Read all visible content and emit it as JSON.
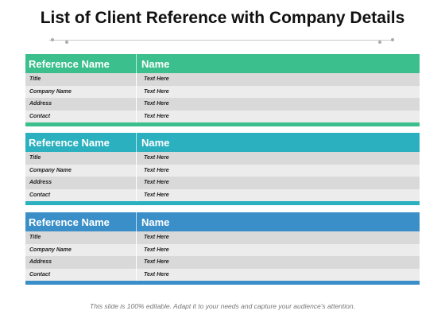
{
  "title": "List of Client Reference with Company Details",
  "colors": {
    "table1": "#3bbf8c",
    "table2": "#2bb0bf",
    "table3": "#3a8fc9"
  },
  "tables": [
    {
      "header": {
        "col1": "Reference Name",
        "col2": "Name"
      },
      "rows": [
        {
          "label": "Title",
          "value": "Text Here"
        },
        {
          "label": "Company Name",
          "value": "Text Here"
        },
        {
          "label": "Address",
          "value": "Text Here"
        },
        {
          "label": "Contact",
          "value": "Text Here"
        }
      ]
    },
    {
      "header": {
        "col1": "Reference Name",
        "col2": "Name"
      },
      "rows": [
        {
          "label": "Title",
          "value": "Text Here"
        },
        {
          "label": "Company Name",
          "value": "Text Here"
        },
        {
          "label": "Address",
          "value": "Text Here"
        },
        {
          "label": "Contact",
          "value": "Text Here"
        }
      ]
    },
    {
      "header": {
        "col1": "Reference Name",
        "col2": "Name"
      },
      "rows": [
        {
          "label": "Title",
          "value": "Text Here"
        },
        {
          "label": "Company Name",
          "value": "Text Here"
        },
        {
          "label": "Address",
          "value": "Text Here"
        },
        {
          "label": "Contact",
          "value": "Text Here"
        }
      ]
    }
  ],
  "footer": "This slide is 100% editable. Adapt it to your needs and capture your audience's attention."
}
